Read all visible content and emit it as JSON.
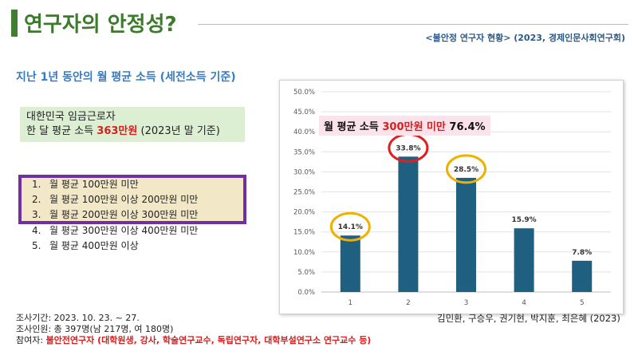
{
  "header": {
    "title": "연구자의 안정성?",
    "source": "<불안정 연구자 현황> (2023, 경제인문사회연구회)"
  },
  "subtitle": "지난 1년 동안의 월 평균 소득 (세전소득 기준)",
  "wage_box": {
    "line1": "대한민국 임금근로자",
    "line2_prefix": "한 달 평균 소득 ",
    "line2_value": "363만원",
    "line2_suffix": " (2023년 말 기준)"
  },
  "income_categories": [
    {
      "num": "1.",
      "label": "월 평균 100만원 미만"
    },
    {
      "num": "2.",
      "label": "월 평균 100만원 이상 200만원 미만"
    },
    {
      "num": "3.",
      "label": "월 평균 200만원 이상 300만원 미만"
    },
    {
      "num": "4.",
      "label": "월 평균 300만원 이상 400만원 미만"
    },
    {
      "num": "5.",
      "label": "월 평균 400만원 이상"
    }
  ],
  "callout": {
    "prefix": "월 평균 소득 ",
    "highlight": "300만원 미만",
    "suffix": " 76.4%"
  },
  "colors": {
    "bar": "#1f5f7f",
    "ring_red": "#e02020",
    "ring_yellow": "#f0b000",
    "highlight_red": "#d42020",
    "title_green": "#3d7a2c",
    "purple_border": "#7030a0"
  },
  "chart_data": {
    "type": "bar",
    "categories": [
      "1",
      "2",
      "3",
      "4",
      "5"
    ],
    "values": [
      14.1,
      33.8,
      28.5,
      15.9,
      7.8
    ],
    "value_labels": [
      "14.1%",
      "33.8%",
      "28.5%",
      "15.9%",
      "7.8%"
    ],
    "ylim": [
      0,
      50
    ],
    "yticks": [
      "0.0%",
      "5.0%",
      "10.0%",
      "15.0%",
      "20.0%",
      "25.0%",
      "30.0%",
      "35.0%",
      "40.0%",
      "45.0%",
      "50.0%"
    ],
    "grid": true,
    "highlight_rings": [
      {
        "category": "1",
        "color": "yellow"
      },
      {
        "category": "2",
        "color": "red"
      },
      {
        "category": "3",
        "color": "yellow"
      }
    ]
  },
  "authors": "김민환, 구승우, 권기현, 박지훈, 최은혜 (2023)",
  "survey_info": {
    "period": "조사기간: 2023. 10. 23. ~ 27.",
    "respondents": "조사인원: 총 397명(남 217명, 여 180명)",
    "participants_label": "참여자: ",
    "participants_value": "불안전연구자 (대학원생, 강사, 학술연구교수, 독립연구자, 대학부설연구소 연구교수 등)"
  }
}
